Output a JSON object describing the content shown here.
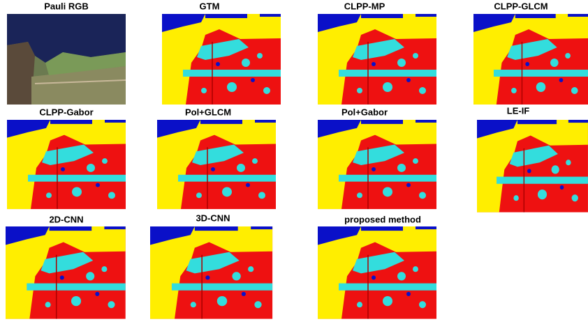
{
  "panels": [
    "Pauli RGB",
    "GTM",
    "CLPP-MP",
    "CLPP-GLCM",
    "CLPP-Gabor",
    "Pol+GLCM",
    "Pol+Gabor",
    "LE-IF",
    "2D-CNN",
    "3D-CNN",
    "proposed method"
  ]
}
